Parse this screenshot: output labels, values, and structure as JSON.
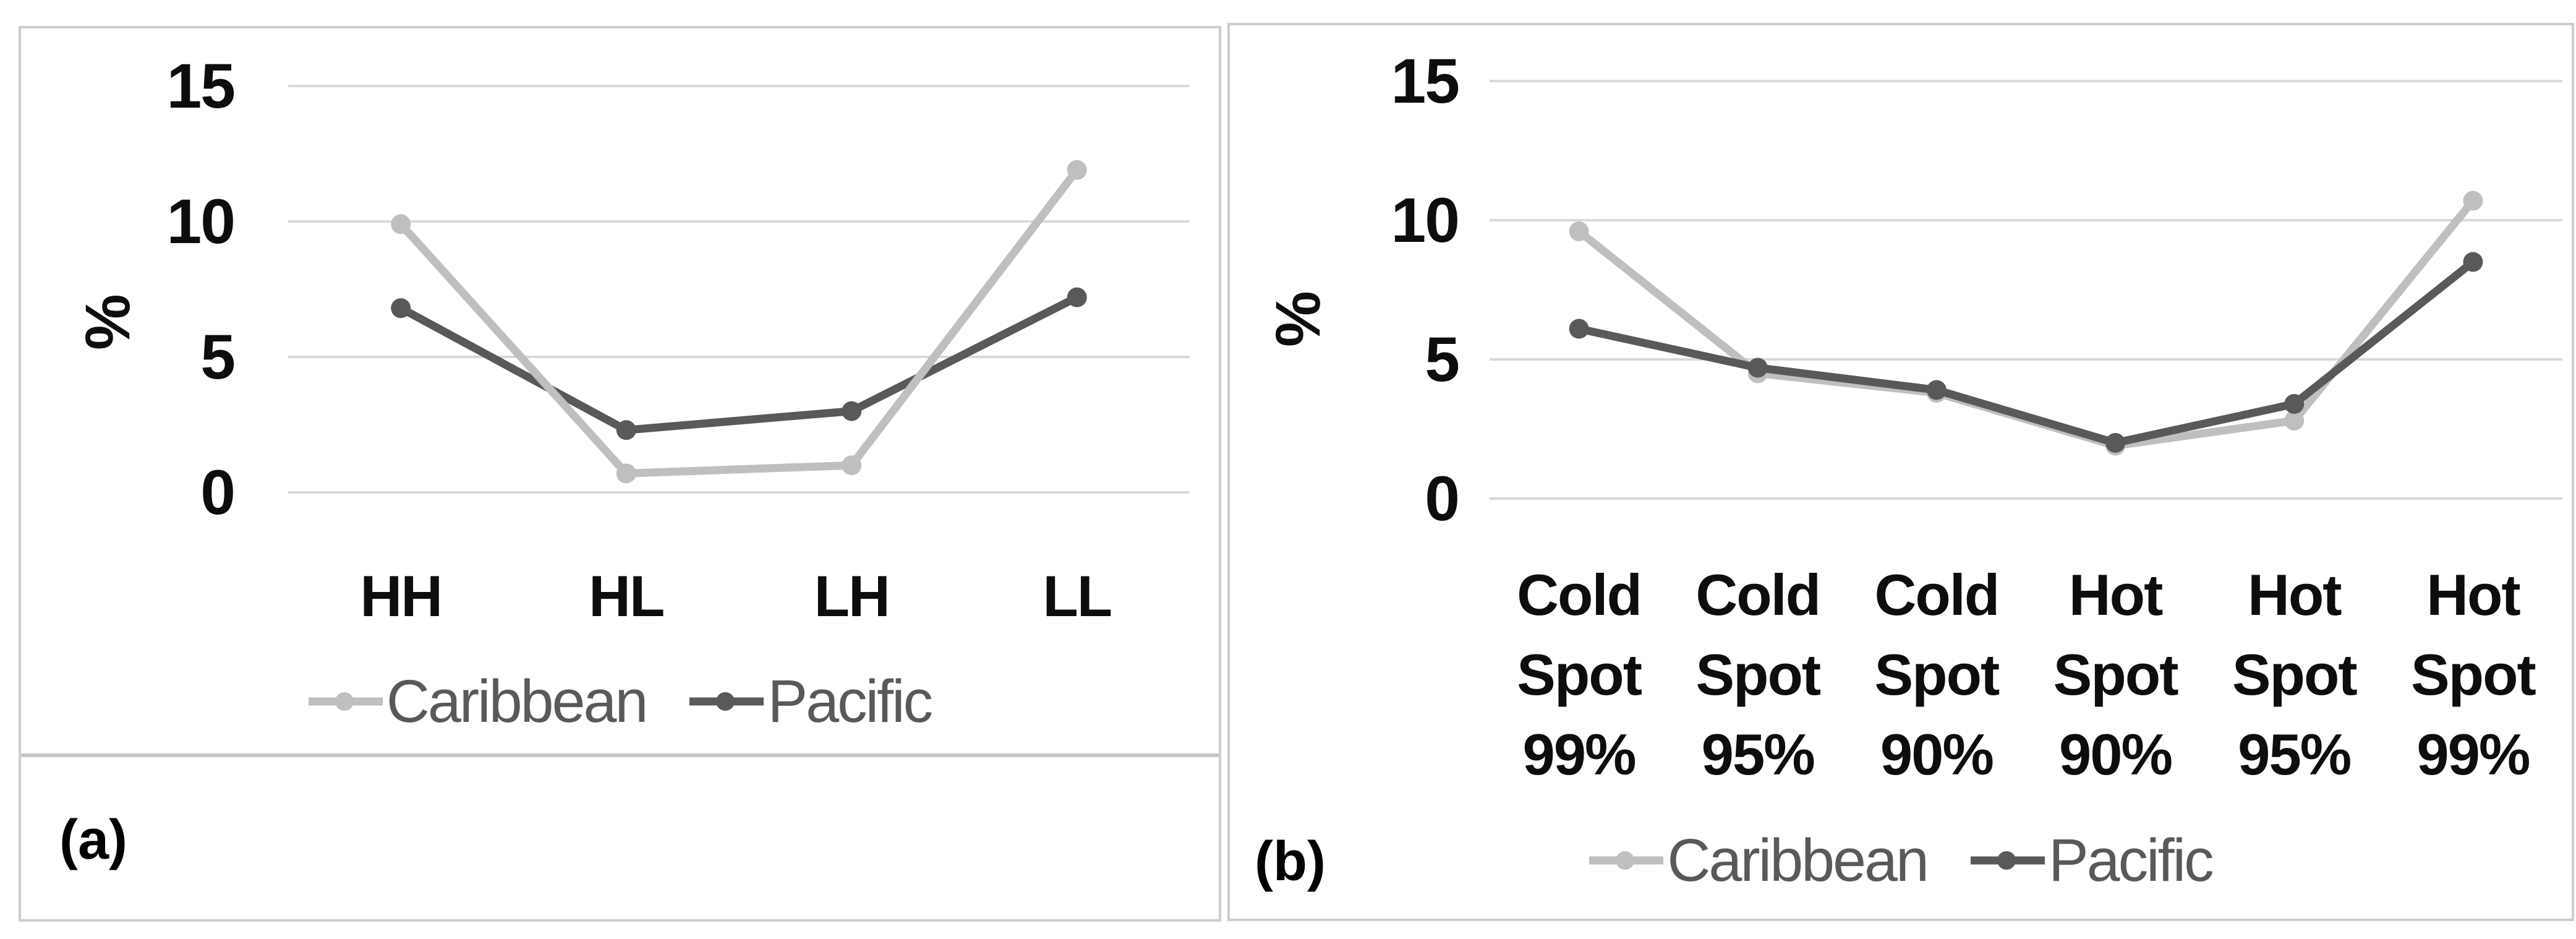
{
  "figure": {
    "background": "#ffffff",
    "panel_border_color": "#cdcdcd",
    "divider_color": "#c6c6c6"
  },
  "colors": {
    "caribbean": "#bfbfbf",
    "pacific": "#595959",
    "gridline": "#d9d9d9",
    "tick_text": "#0d0d0d",
    "legend_text": "#595959",
    "caption_text": "#000000"
  },
  "panels": [
    {
      "caption": "(a)",
      "ylabel": "%"
    },
    {
      "caption": "(b)",
      "ylabel": "%"
    }
  ],
  "chart_data": [
    {
      "type": "line",
      "title": "",
      "xlabel": "",
      "ylabel": "%",
      "categories": [
        "HH",
        "HL",
        "LH",
        "LL"
      ],
      "series": [
        {
          "name": "Caribbean",
          "color": "#bfbfbf",
          "values": [
            9.9,
            0.7,
            1.0,
            11.9
          ]
        },
        {
          "name": "Pacific",
          "color": "#595959",
          "values": [
            6.8,
            2.3,
            3.0,
            7.2
          ]
        }
      ],
      "ylim": [
        0,
        15
      ],
      "yticks": [
        15,
        10,
        5,
        0
      ],
      "grid": true,
      "marker": "circle",
      "legend_position": "bottom"
    },
    {
      "type": "line",
      "title": "",
      "xlabel": "",
      "ylabel": "%",
      "categories": [
        "Cold Spot 99%",
        "Cold Spot 95%",
        "Cold Spot 90%",
        "Hot Spot 90%",
        "Hot Spot 95%",
        "Hot Spot 99%"
      ],
      "series": [
        {
          "name": "Caribbean",
          "color": "#bfbfbf",
          "values": [
            9.6,
            4.5,
            3.8,
            1.9,
            2.8,
            10.7
          ]
        },
        {
          "name": "Pacific",
          "color": "#595959",
          "values": [
            6.1,
            4.7,
            3.9,
            2.0,
            3.4,
            8.5
          ]
        }
      ],
      "ylim": [
        0,
        15
      ],
      "yticks": [
        15,
        10,
        5,
        0
      ],
      "grid": true,
      "marker": "circle",
      "legend_position": "bottom"
    }
  ]
}
